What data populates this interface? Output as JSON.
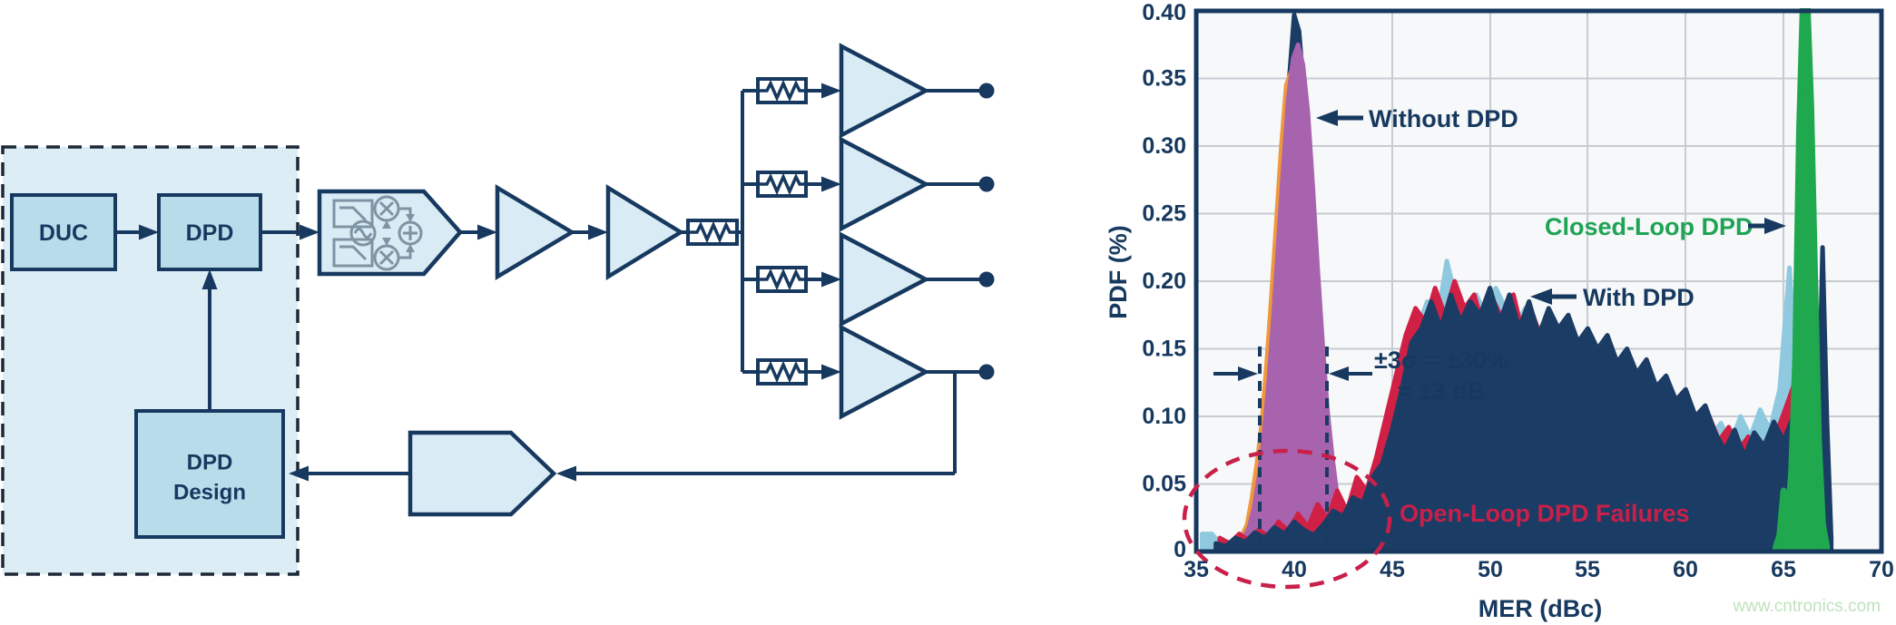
{
  "diagram": {
    "blocks": {
      "duc": "DUC",
      "dpd": "DPD",
      "dpd_design": [
        "DPD",
        "Design"
      ]
    },
    "icons": [
      "low-pass-filter",
      "mixer",
      "oscillator",
      "summer",
      "amplifier",
      "attenuator",
      "adc-feedback"
    ]
  },
  "chart_data": {
    "type": "line",
    "title": "",
    "xlabel": "MER (dBc)",
    "ylabel": "PDF (%)",
    "xlim": [
      35,
      70
    ],
    "ylim": [
      0,
      0.4
    ],
    "grid": true,
    "x_ticks": [
      "35",
      "40",
      "45",
      "50",
      "55",
      "60",
      "65",
      "70"
    ],
    "y_ticks": [
      "0.40",
      "0.35",
      "0.30",
      "0.25",
      "0.20",
      "0.15",
      "0.10",
      "0.05",
      "0"
    ],
    "annotations": {
      "without_dpd": "Without DPD",
      "with_dpd": "With DPD",
      "closed_loop": "Closed-Loop DPD",
      "open_loop": "Open-Loop DPD Failures",
      "sigma_line1": "±3σ = ±30%",
      "sigma_line2": "= ±3 dB"
    },
    "sigma_markers": {
      "x1": 38.25,
      "x2": 41.7
    },
    "failure_ellipse": {
      "cx": 39.6,
      "cy": 0.0095,
      "rx_dB": 5.2,
      "ry_pdf": 0.05
    },
    "series": [
      {
        "name": "without-dpd-navy",
        "color": "#1b3c64",
        "sw": 5,
        "x0": 36.5,
        "dx": 0.25,
        "values": [
          0.002,
          0.003,
          0.005,
          0.008,
          0.014,
          0.024,
          0.045,
          0.07,
          0.1,
          0.145,
          0.19,
          0.25,
          0.3,
          0.35,
          0.397,
          0.385,
          0.34,
          0.3,
          0.23,
          0.175,
          0.125,
          0.085,
          0.055,
          0.032,
          0.018,
          0.01,
          0.005,
          0.003,
          0.002
        ]
      },
      {
        "name": "without-dpd-orange",
        "color": "#f0983d",
        "sw": 5,
        "x0": 36.6,
        "dx": 0.25,
        "values": [
          0.002,
          0.004,
          0.007,
          0.012,
          0.02,
          0.04,
          0.065,
          0.095,
          0.14,
          0.19,
          0.245,
          0.3,
          0.345,
          0.355,
          0.33,
          0.3,
          0.26,
          0.2,
          0.15,
          0.1,
          0.065,
          0.04,
          0.022,
          0.012,
          0.008,
          0.01,
          0.02,
          0.015,
          0.022,
          0.012,
          0.006,
          0.003
        ]
      },
      {
        "name": "without-dpd-purple",
        "color": "#a763ad",
        "sw": 5,
        "x0": 36.7,
        "dx": 0.25,
        "values": [
          0.002,
          0.004,
          0.006,
          0.01,
          0.018,
          0.032,
          0.055,
          0.085,
          0.125,
          0.175,
          0.23,
          0.285,
          0.335,
          0.365,
          0.375,
          0.36,
          0.325,
          0.27,
          0.21,
          0.155,
          0.105,
          0.07,
          0.042,
          0.024,
          0.013,
          0.007,
          0.012,
          0.006,
          0.003
        ]
      },
      {
        "name": "with-dpd-lightblue",
        "color": "#8fc9df",
        "sw": 5,
        "x0": 35.3,
        "dx": 0.5,
        "values": [
          0.013,
          0.013,
          0.004,
          0.002,
          0.004,
          0.007,
          0.005,
          0.009,
          0.006,
          0.012,
          0.008,
          0.015,
          0.01,
          0.018,
          0.025,
          0.035,
          0.03,
          0.045,
          0.06,
          0.08,
          0.11,
          0.14,
          0.165,
          0.185,
          0.17,
          0.215,
          0.185,
          0.17,
          0.19,
          0.175,
          0.195,
          0.18,
          0.165,
          0.18,
          0.16,
          0.17,
          0.15,
          0.162,
          0.145,
          0.155,
          0.135,
          0.148,
          0.128,
          0.14,
          0.12,
          0.13,
          0.11,
          0.12,
          0.1,
          0.112,
          0.095,
          0.105,
          0.085,
          0.095,
          0.08,
          0.1,
          0.085,
          0.105,
          0.09,
          0.12,
          0.21,
          0.1,
          0.01
        ]
      },
      {
        "name": "with-dpd-red",
        "color": "#d12045",
        "sw": 5,
        "x0": 36.2,
        "dx": 0.5,
        "values": [
          0.01,
          0.006,
          0.013,
          0.008,
          0.016,
          0.011,
          0.022,
          0.015,
          0.028,
          0.018,
          0.035,
          0.024,
          0.045,
          0.03,
          0.055,
          0.045,
          0.07,
          0.1,
          0.13,
          0.16,
          0.18,
          0.17,
          0.195,
          0.175,
          0.2,
          0.18,
          0.19,
          0.165,
          0.185,
          0.17,
          0.19,
          0.16,
          0.175,
          0.155,
          0.17,
          0.15,
          0.16,
          0.142,
          0.152,
          0.132,
          0.145,
          0.125,
          0.138,
          0.118,
          0.128,
          0.108,
          0.118,
          0.098,
          0.108,
          0.09,
          0.1,
          0.082,
          0.092,
          0.075,
          0.085,
          0.068,
          0.08,
          0.09,
          0.11,
          0.13,
          0.05,
          0.005
        ]
      },
      {
        "name": "with-dpd-navy",
        "color": "#1b3c64",
        "sw": 5,
        "x0": 36.0,
        "dx": 0.5,
        "values": [
          0.006,
          0.004,
          0.01,
          0.007,
          0.014,
          0.01,
          0.018,
          0.013,
          0.022,
          0.016,
          0.012,
          0.02,
          0.03,
          0.026,
          0.04,
          0.036,
          0.055,
          0.065,
          0.09,
          0.12,
          0.155,
          0.165,
          0.185,
          0.165,
          0.19,
          0.17,
          0.185,
          0.175,
          0.195,
          0.17,
          0.19,
          0.165,
          0.185,
          0.16,
          0.18,
          0.165,
          0.175,
          0.155,
          0.165,
          0.15,
          0.16,
          0.14,
          0.15,
          0.132,
          0.142,
          0.122,
          0.13,
          0.112,
          0.12,
          0.1,
          0.108,
          0.088,
          0.075,
          0.09,
          0.07,
          0.088,
          0.078,
          0.096,
          0.082,
          0.1,
          0.088,
          0.04,
          0.005
        ]
      },
      {
        "name": "closed-loop-navy-spike",
        "color": "#1b3c64",
        "sw": 5,
        "x0": 66.55,
        "dx": 0.22,
        "values": [
          0.01,
          0.08,
          0.225,
          0.1,
          0.01
        ]
      },
      {
        "name": "closed-loop-dpd-green",
        "color": "#1fa84e",
        "sw": 7,
        "x0": 64.6,
        "dx": 0.2,
        "values": [
          0.003,
          0.012,
          0.045,
          0.02,
          0.06,
          0.14,
          0.31,
          0.41,
          0.41,
          0.33,
          0.2,
          0.08,
          0.02,
          0.004
        ]
      }
    ]
  },
  "watermark": "www.cntronics.com",
  "colors": {
    "navy": "#17395f",
    "crimson": "#d12045",
    "light_blue": "#8fc9df",
    "purple": "#a763ad",
    "orange": "#f0983d",
    "green": "#1fa84e",
    "annotation_red": "#c8204a",
    "block_fill": "#b9dcea",
    "container_fill": "#dcedf6",
    "shape_fill": "#d9ecf5",
    "grid": "#c7ccd2"
  }
}
